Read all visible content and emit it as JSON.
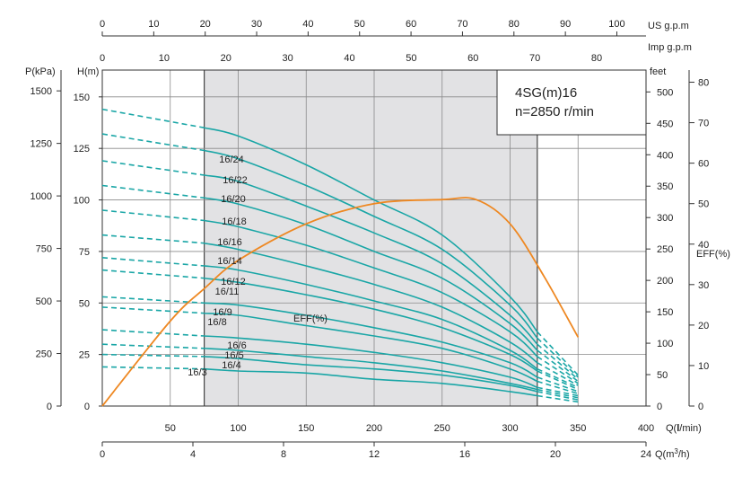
{
  "chart_data": {
    "type": "line",
    "title_lines": [
      "4SG(m)16",
      "n=2850 r/min"
    ],
    "colors": {
      "curve": "#1aa6a6",
      "efficiency": "#ee8822",
      "band": "#e2e2e4",
      "grid": "#8a8a8a"
    },
    "axes": {
      "x_main": {
        "label": "Q(l/min)",
        "label_prefix": "Q(",
        "label_bold": "l",
        "label_suffix": "/min)",
        "ticks": [
          50,
          100,
          150,
          200,
          250,
          300,
          350,
          400
        ],
        "min": 0,
        "max": 400
      },
      "x_m3h": {
        "label": "Q(m³/h)",
        "label_prefix": "Q(m",
        "label_sup": "3",
        "label_suffix": "/h)",
        "ticks": [
          0,
          4,
          8,
          12,
          16,
          20,
          24
        ],
        "min": 0,
        "max": 24
      },
      "x_us": {
        "label": "US  g.p.m",
        "ticks": [
          0,
          10,
          20,
          30,
          40,
          50,
          60,
          70,
          80,
          90,
          100
        ],
        "min": 0,
        "max": 105.67
      },
      "x_imp": {
        "label": "Imp  g.p.m",
        "ticks": [
          0,
          10,
          20,
          30,
          40,
          50,
          60,
          70,
          80
        ],
        "min": 0,
        "max": 87.99
      },
      "y_head": {
        "label": "H(m)",
        "ticks": [
          0,
          25,
          50,
          75,
          100,
          125,
          150
        ],
        "min": 0,
        "max": 163
      },
      "y_pressure": {
        "label": "P(kPa)",
        "ticks": [
          0,
          250,
          500,
          750,
          1000,
          1250,
          1500
        ],
        "min": 0,
        "max": 1599
      },
      "y_feet": {
        "label": "feet",
        "ticks": [
          0,
          50,
          100,
          150,
          200,
          250,
          300,
          350,
          400,
          450,
          500
        ],
        "min": 0,
        "max": 534.8
      },
      "y_eff": {
        "label": "EFF(%)",
        "ticks": [
          0,
          10,
          20,
          30,
          40,
          50,
          60,
          70,
          80
        ],
        "min": 0,
        "max": 83
      }
    },
    "operating_range_lpm": [
      75,
      320
    ],
    "series": [
      {
        "name": "16/24",
        "q": [
          0,
          75,
          100,
          150,
          200,
          250,
          300,
          320,
          350
        ],
        "h": [
          144,
          135,
          131,
          117,
          100,
          83,
          53,
          36,
          15
        ]
      },
      {
        "name": "16/22",
        "q": [
          0,
          75,
          100,
          150,
          200,
          250,
          300,
          320,
          350
        ],
        "h": [
          132,
          124,
          120,
          107,
          92,
          76,
          49,
          33,
          14
        ]
      },
      {
        "name": "16/20",
        "q": [
          0,
          75,
          100,
          150,
          200,
          250,
          300,
          320,
          350
        ],
        "h": [
          119,
          112,
          109,
          97,
          84,
          69,
          44,
          30,
          13
        ]
      },
      {
        "name": "16/18",
        "q": [
          0,
          75,
          100,
          150,
          200,
          250,
          300,
          320,
          350
        ],
        "h": [
          107,
          101,
          98,
          88,
          75,
          62,
          40,
          27,
          12
        ]
      },
      {
        "name": "16/16",
        "q": [
          0,
          75,
          100,
          150,
          200,
          250,
          300,
          320,
          350
        ],
        "h": [
          95,
          90,
          87,
          78,
          67,
          55,
          36,
          24,
          11
        ]
      },
      {
        "name": "16/14",
        "q": [
          0,
          75,
          100,
          150,
          200,
          250,
          300,
          320,
          350
        ],
        "h": [
          83,
          79,
          76,
          68,
          59,
          48,
          31,
          21,
          10
        ]
      },
      {
        "name": "16/12",
        "q": [
          0,
          75,
          100,
          150,
          200,
          250,
          300,
          320,
          350
        ],
        "h": [
          72,
          68,
          66,
          59,
          51,
          42,
          27,
          18,
          9
        ]
      },
      {
        "name": "16/11",
        "q": [
          0,
          75,
          100,
          150,
          200,
          250,
          300,
          320,
          350
        ],
        "h": [
          66,
          62,
          60,
          54,
          47,
          38,
          25,
          17,
          8
        ]
      },
      {
        "name": "16/9",
        "q": [
          0,
          75,
          100,
          150,
          200,
          250,
          300,
          320,
          350
        ],
        "h": [
          53,
          50,
          49,
          44,
          38,
          31,
          21,
          14,
          7
        ]
      },
      {
        "name": "16/8",
        "q": [
          0,
          75,
          100,
          150,
          200,
          250,
          300,
          320,
          350
        ],
        "h": [
          48,
          45,
          44,
          39,
          34,
          28,
          18,
          12,
          6
        ]
      },
      {
        "name": "16/6",
        "q": [
          0,
          75,
          100,
          150,
          200,
          250,
          300,
          320,
          350
        ],
        "h": [
          37,
          34,
          33,
          30,
          26,
          21,
          14,
          9,
          5
        ]
      },
      {
        "name": "16/5",
        "q": [
          0,
          75,
          100,
          150,
          200,
          250,
          300,
          320,
          350
        ],
        "h": [
          30,
          28,
          27,
          24,
          21,
          17,
          11,
          8,
          4
        ]
      },
      {
        "name": "16/4",
        "q": [
          0,
          75,
          100,
          150,
          200,
          250,
          300,
          320,
          350
        ],
        "h": [
          25,
          24,
          23,
          20,
          18,
          15,
          10,
          7,
          3
        ]
      },
      {
        "name": "16/3",
        "q": [
          0,
          75,
          100,
          150,
          200,
          250,
          300,
          320,
          350
        ],
        "h": [
          19,
          18,
          17,
          16,
          13,
          11,
          7,
          5,
          2
        ]
      }
    ],
    "efficiency": {
      "name": "EFF(%)",
      "q": [
        0,
        50,
        75,
        100,
        150,
        200,
        250,
        275,
        300,
        325,
        350
      ],
      "eff": [
        0,
        21,
        29,
        36,
        45,
        50,
        51,
        51,
        45,
        32,
        17
      ]
    }
  }
}
